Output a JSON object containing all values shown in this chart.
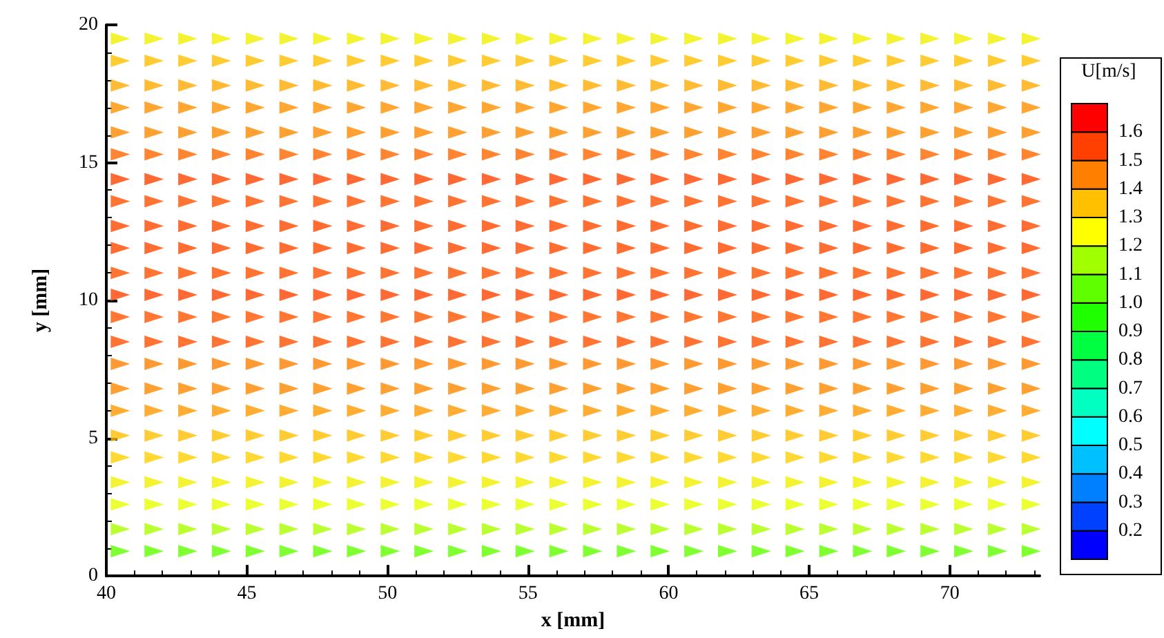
{
  "chart_data": {
    "type": "scatter",
    "xlabel": "x [mm]",
    "ylabel": "y [mm]",
    "clabel": "U[m/s]",
    "marker": "triangle",
    "xlim": [
      40,
      73.2
    ],
    "xticks": [
      40,
      45,
      50,
      55,
      60,
      65,
      70
    ],
    "ylim": [
      0,
      20
    ],
    "yticks": [
      0,
      5,
      10,
      15,
      20
    ],
    "clim": [
      0.1,
      1.7
    ],
    "cticks": [
      0.2,
      0.3,
      0.4,
      0.5,
      0.6,
      0.7,
      0.8,
      0.9,
      {
        "value": 1.0,
        "label": "1.0"
      },
      1.1,
      1.2,
      1.3,
      1.4,
      1.5,
      1.6
    ],
    "x": [
      40.5,
      41.7,
      42.9,
      44.1,
      45.3,
      46.5,
      47.7,
      48.9,
      50.1,
      51.3,
      52.5,
      53.7,
      54.9,
      56.1,
      57.3,
      58.5,
      59.7,
      60.9,
      62.1,
      63.3,
      64.5,
      65.7,
      66.9,
      68.1,
      69.3,
      70.5,
      71.7,
      72.9
    ],
    "series": [
      {
        "color": "#60ff00",
        "values": [
          0.9,
          0.9,
          0.9,
          0.9,
          0.9,
          0.9,
          0.9,
          0.9,
          0.9,
          0.9,
          0.9,
          0.9,
          0.9,
          0.9,
          0.9,
          0.9,
          0.9,
          0.9,
          0.9,
          0.9,
          0.9,
          0.9,
          0.9,
          0.9,
          0.9,
          0.9,
          0.9,
          0.9
        ]
      },
      {
        "color": "#aaff00",
        "values": [
          1.7,
          1.7,
          1.7,
          1.7,
          1.7,
          1.7,
          1.7,
          1.7,
          1.7,
          1.7,
          1.7,
          1.7,
          1.7,
          1.7,
          1.7,
          1.7,
          1.7,
          1.7,
          1.7,
          1.7,
          1.7,
          1.7,
          1.7,
          1.7,
          1.7,
          1.7,
          1.7,
          1.7
        ]
      },
      {
        "color": "#e6ff00",
        "values": [
          2.6,
          2.6,
          2.6,
          2.6,
          2.6,
          2.6,
          2.6,
          2.6,
          2.6,
          2.6,
          2.6,
          2.6,
          2.6,
          2.6,
          2.6,
          2.6,
          2.6,
          2.6,
          2.6,
          2.6,
          2.6,
          2.6,
          2.6,
          2.6,
          2.6,
          2.6,
          2.6,
          2.6
        ]
      },
      {
        "color": "#f0f000",
        "values": [
          3.4,
          3.4,
          3.4,
          3.4,
          3.4,
          3.4,
          3.4,
          3.4,
          3.4,
          3.4,
          3.4,
          3.4,
          3.4,
          3.4,
          3.4,
          3.4,
          3.4,
          3.4,
          3.4,
          3.4,
          3.4,
          3.4,
          3.4,
          3.4,
          3.4,
          3.4,
          3.4,
          3.4
        ]
      },
      {
        "color": "#ffd000",
        "values": [
          4.3,
          4.3,
          4.3,
          4.3,
          4.3,
          4.3,
          4.3,
          4.3,
          4.3,
          4.3,
          4.3,
          4.3,
          4.3,
          4.3,
          4.3,
          4.3,
          4.3,
          4.3,
          4.3,
          4.3,
          4.3,
          4.3,
          4.3,
          4.3,
          4.3,
          4.3,
          4.3,
          4.3
        ]
      },
      {
        "color": "#ffc000",
        "values": [
          5.1,
          5.1,
          5.1,
          5.1,
          5.1,
          5.1,
          5.1,
          5.1,
          5.1,
          5.1,
          5.1,
          5.1,
          5.1,
          5.1,
          5.1,
          5.1,
          5.1,
          5.1,
          5.1,
          5.1,
          5.1,
          5.1,
          5.1,
          5.1,
          5.1,
          5.1,
          5.1,
          5.1
        ]
      },
      {
        "color": "#ff9900",
        "values": [
          6.0,
          6.0,
          6.0,
          6.0,
          6.0,
          6.0,
          6.0,
          6.0,
          6.0,
          6.0,
          6.0,
          6.0,
          6.0,
          6.0,
          6.0,
          6.0,
          6.0,
          6.0,
          6.0,
          6.0,
          6.0,
          6.0,
          6.0,
          6.0,
          6.0,
          6.0,
          6.0,
          6.0
        ]
      },
      {
        "color": "#ff8800",
        "values": [
          6.8,
          6.8,
          6.8,
          6.8,
          6.8,
          6.8,
          6.8,
          6.8,
          6.8,
          6.8,
          6.8,
          6.8,
          6.8,
          6.8,
          6.8,
          6.8,
          6.8,
          6.8,
          6.8,
          6.8,
          6.8,
          6.8,
          6.8,
          6.8,
          6.8,
          6.8,
          6.8,
          6.8
        ]
      },
      {
        "color": "#ff8000",
        "values": [
          7.7,
          7.7,
          7.7,
          7.7,
          7.7,
          7.7,
          7.7,
          7.7,
          7.7,
          7.7,
          7.7,
          7.7,
          7.7,
          7.7,
          7.7,
          7.7,
          7.7,
          7.7,
          7.7,
          7.7,
          7.7,
          7.7,
          7.7,
          7.7,
          7.7,
          7.7,
          7.7,
          7.7
        ]
      },
      {
        "color": "#ff5000",
        "values": [
          8.5,
          8.5,
          8.5,
          8.5,
          8.5,
          8.5,
          8.5,
          8.5,
          8.5,
          8.5,
          8.5,
          8.5,
          8.5,
          8.5,
          8.5,
          8.5,
          8.5,
          8.5,
          8.5,
          8.5,
          8.5,
          8.5,
          8.5,
          8.5,
          8.5,
          8.5,
          8.5,
          8.5
        ]
      },
      {
        "color": "#ff5500",
        "values": [
          9.4,
          9.4,
          9.4,
          9.4,
          9.4,
          9.4,
          9.4,
          9.4,
          9.4,
          9.4,
          9.4,
          9.4,
          9.4,
          9.4,
          9.4,
          9.4,
          9.4,
          9.4,
          9.4,
          9.4,
          9.4,
          9.4,
          9.4,
          9.4,
          9.4,
          9.4,
          9.4,
          9.4
        ]
      },
      {
        "color": "#ff4400",
        "values": [
          10.2,
          10.2,
          10.2,
          10.2,
          10.2,
          10.2,
          10.2,
          10.2,
          10.2,
          10.2,
          10.2,
          10.2,
          10.2,
          10.2,
          10.2,
          10.2,
          10.2,
          10.2,
          10.2,
          10.2,
          10.2,
          10.2,
          10.2,
          10.2,
          10.2,
          10.2,
          10.2,
          10.2
        ]
      },
      {
        "color": "#ff5000",
        "values": [
          11.0,
          11.0,
          11.0,
          11.0,
          11.0,
          11.0,
          11.0,
          11.0,
          11.0,
          11.0,
          11.0,
          11.0,
          11.0,
          11.0,
          11.0,
          11.0,
          11.0,
          11.0,
          11.0,
          11.0,
          11.0,
          11.0,
          11.0,
          11.0,
          11.0,
          11.0,
          11.0,
          11.0
        ]
      },
      {
        "color": "#ff4800",
        "values": [
          11.9,
          11.9,
          11.9,
          11.9,
          11.9,
          11.9,
          11.9,
          11.9,
          11.9,
          11.9,
          11.9,
          11.9,
          11.9,
          11.9,
          11.9,
          11.9,
          11.9,
          11.9,
          11.9,
          11.9,
          11.9,
          11.9,
          11.9,
          11.9,
          11.9,
          11.9,
          11.9,
          11.9
        ]
      },
      {
        "color": "#ff4800",
        "values": [
          12.7,
          12.7,
          12.7,
          12.7,
          12.7,
          12.7,
          12.7,
          12.7,
          12.7,
          12.7,
          12.7,
          12.7,
          12.7,
          12.7,
          12.7,
          12.7,
          12.7,
          12.7,
          12.7,
          12.7,
          12.7,
          12.7,
          12.7,
          12.7,
          12.7,
          12.7,
          12.7,
          12.7
        ]
      },
      {
        "color": "#ff5000",
        "values": [
          13.6,
          13.6,
          13.6,
          13.6,
          13.6,
          13.6,
          13.6,
          13.6,
          13.6,
          13.6,
          13.6,
          13.6,
          13.6,
          13.6,
          13.6,
          13.6,
          13.6,
          13.6,
          13.6,
          13.6,
          13.6,
          13.6,
          13.6,
          13.6,
          13.6,
          13.6,
          13.6,
          13.6
        ]
      },
      {
        "color": "#ff4400",
        "values": [
          14.4,
          14.4,
          14.4,
          14.4,
          14.4,
          14.4,
          14.4,
          14.4,
          14.4,
          14.4,
          14.4,
          14.4,
          14.4,
          14.4,
          14.4,
          14.4,
          14.4,
          14.4,
          14.4,
          14.4,
          14.4,
          14.4,
          14.4,
          14.4,
          14.4,
          14.4,
          14.4,
          14.4
        ]
      },
      {
        "color": "#ff6600",
        "values": [
          15.3,
          15.3,
          15.3,
          15.3,
          15.3,
          15.3,
          15.3,
          15.3,
          15.3,
          15.3,
          15.3,
          15.3,
          15.3,
          15.3,
          15.3,
          15.3,
          15.3,
          15.3,
          15.3,
          15.3,
          15.3,
          15.3,
          15.3,
          15.3,
          15.3,
          15.3,
          15.3,
          15.3
        ]
      },
      {
        "color": "#ff8800",
        "values": [
          16.1,
          16.1,
          16.1,
          16.1,
          16.1,
          16.1,
          16.1,
          16.1,
          16.1,
          16.1,
          16.1,
          16.1,
          16.1,
          16.1,
          16.1,
          16.1,
          16.1,
          16.1,
          16.1,
          16.1,
          16.1,
          16.1,
          16.1,
          16.1,
          16.1,
          16.1,
          16.1,
          16.1
        ]
      },
      {
        "color": "#ff9000",
        "values": [
          17.0,
          17.0,
          17.0,
          17.0,
          17.0,
          17.0,
          17.0,
          17.0,
          17.0,
          17.0,
          17.0,
          17.0,
          17.0,
          17.0,
          17.0,
          17.0,
          17.0,
          17.0,
          17.0,
          17.0,
          17.0,
          17.0,
          17.0,
          17.0,
          17.0,
          17.0,
          17.0,
          17.0
        ]
      },
      {
        "color": "#ffaa00",
        "values": [
          17.8,
          17.8,
          17.8,
          17.8,
          17.8,
          17.8,
          17.8,
          17.8,
          17.8,
          17.8,
          17.8,
          17.8,
          17.8,
          17.8,
          17.8,
          17.8,
          17.8,
          17.8,
          17.8,
          17.8,
          17.8,
          17.8,
          17.8,
          17.8,
          17.8,
          17.8,
          17.8,
          17.8
        ]
      },
      {
        "color": "#ffc000",
        "values": [
          18.7,
          18.7,
          18.7,
          18.7,
          18.7,
          18.7,
          18.7,
          18.7,
          18.7,
          18.7,
          18.7,
          18.7,
          18.7,
          18.7,
          18.7,
          18.7,
          18.7,
          18.7,
          18.7,
          18.7,
          18.7,
          18.7,
          18.7,
          18.7,
          18.7,
          18.7,
          18.7,
          18.7
        ]
      },
      {
        "color": "#f0f000",
        "values": [
          19.5,
          19.5,
          19.5,
          19.5,
          19.5,
          19.5,
          19.5,
          19.5,
          19.5,
          19.5,
          19.5,
          19.5,
          19.5,
          19.5,
          19.5,
          19.5,
          19.5,
          19.5,
          19.5,
          19.5,
          19.5,
          19.5,
          19.5,
          19.5,
          19.5,
          19.5,
          19.5,
          19.5
        ]
      }
    ]
  }
}
